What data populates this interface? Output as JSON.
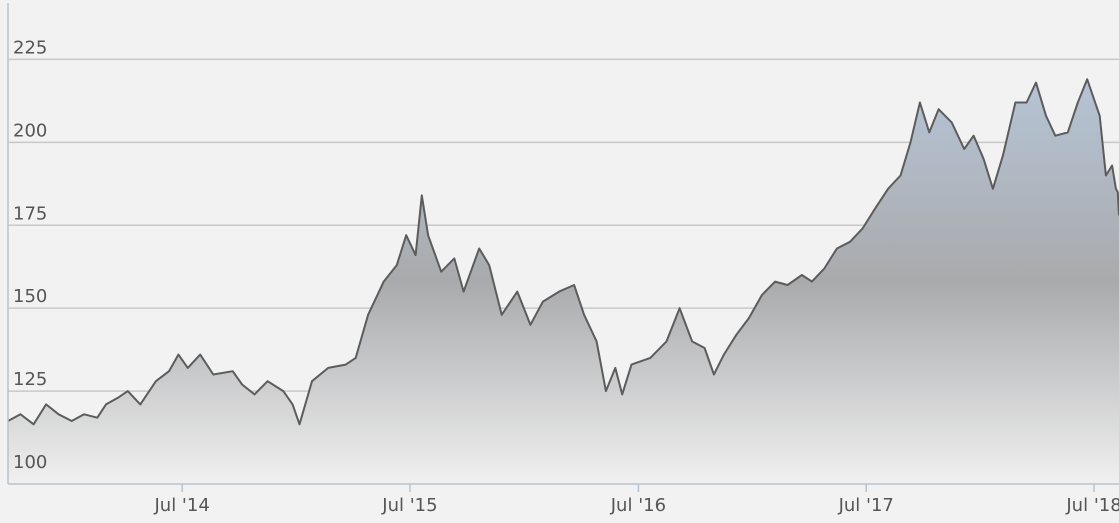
{
  "chart_data": {
    "type": "area",
    "title": "",
    "xlabel": "",
    "ylabel": "",
    "ylim": [
      97,
      242
    ],
    "xlim": [
      "2013-09-25",
      "2018-08-10"
    ],
    "grid": true,
    "y_ticks": [
      {
        "value": 100,
        "label": "100"
      },
      {
        "value": 125,
        "label": "125"
      },
      {
        "value": 150,
        "label": "150"
      },
      {
        "value": 175,
        "label": "175"
      },
      {
        "value": 200,
        "label": "200"
      },
      {
        "value": 225,
        "label": "225"
      }
    ],
    "x_ticks": [
      {
        "value": "2014-07-01",
        "label": "Jul '14"
      },
      {
        "value": "2015-07-01",
        "label": "Jul '15"
      },
      {
        "value": "2016-07-01",
        "label": "Jul '16"
      },
      {
        "value": "2017-07-01",
        "label": "Jul '17"
      },
      {
        "value": "2018-07-01",
        "label": "Jul '18"
      }
    ],
    "series": [
      {
        "values": [
          [
            "2013-09-25",
            116
          ],
          [
            "2013-10-15",
            118
          ],
          [
            "2013-11-05",
            115
          ],
          [
            "2013-11-25",
            121
          ],
          [
            "2013-12-15",
            118
          ],
          [
            "2014-01-05",
            116
          ],
          [
            "2014-01-25",
            118
          ],
          [
            "2014-02-15",
            117
          ],
          [
            "2014-03-01",
            121
          ],
          [
            "2014-03-20",
            123
          ],
          [
            "2014-04-05",
            125
          ],
          [
            "2014-04-25",
            121
          ],
          [
            "2014-05-20",
            128
          ],
          [
            "2014-06-10",
            131
          ],
          [
            "2014-06-25",
            136
          ],
          [
            "2014-07-10",
            132
          ],
          [
            "2014-07-30",
            136
          ],
          [
            "2014-08-20",
            130
          ],
          [
            "2014-09-20",
            131
          ],
          [
            "2014-10-05",
            127
          ],
          [
            "2014-10-25",
            124
          ],
          [
            "2014-11-15",
            128
          ],
          [
            "2014-12-10",
            125
          ],
          [
            "2014-12-25",
            121
          ],
          [
            "2015-01-05",
            115
          ],
          [
            "2015-01-25",
            128
          ],
          [
            "2015-02-20",
            132
          ],
          [
            "2015-03-20",
            133
          ],
          [
            "2015-04-05",
            135
          ],
          [
            "2015-04-25",
            148
          ],
          [
            "2015-05-20",
            158
          ],
          [
            "2015-06-10",
            163
          ],
          [
            "2015-06-25",
            172
          ],
          [
            "2015-07-10",
            166
          ],
          [
            "2015-07-20",
            184
          ],
          [
            "2015-07-30",
            172
          ],
          [
            "2015-08-20",
            161
          ],
          [
            "2015-09-10",
            165
          ],
          [
            "2015-09-25",
            155
          ],
          [
            "2015-10-20",
            168
          ],
          [
            "2015-11-05",
            163
          ],
          [
            "2015-11-25",
            148
          ],
          [
            "2015-12-20",
            155
          ],
          [
            "2016-01-10",
            145
          ],
          [
            "2016-01-30",
            152
          ],
          [
            "2016-02-25",
            155
          ],
          [
            "2016-03-20",
            157
          ],
          [
            "2016-04-05",
            148
          ],
          [
            "2016-04-25",
            140
          ],
          [
            "2016-05-10",
            125
          ],
          [
            "2016-05-25",
            132
          ],
          [
            "2016-06-05",
            124
          ],
          [
            "2016-06-20",
            133
          ],
          [
            "2016-07-20",
            135
          ],
          [
            "2016-08-15",
            140
          ],
          [
            "2016-09-05",
            150
          ],
          [
            "2016-09-25",
            140
          ],
          [
            "2016-10-15",
            138
          ],
          [
            "2016-10-30",
            130
          ],
          [
            "2016-11-15",
            136
          ],
          [
            "2016-12-05",
            142
          ],
          [
            "2016-12-25",
            147
          ],
          [
            "2017-01-15",
            154
          ],
          [
            "2017-02-05",
            158
          ],
          [
            "2017-02-25",
            157
          ],
          [
            "2017-03-20",
            160
          ],
          [
            "2017-04-05",
            158
          ],
          [
            "2017-04-25",
            162
          ],
          [
            "2017-05-15",
            168
          ],
          [
            "2017-06-05",
            170
          ],
          [
            "2017-06-25",
            174
          ],
          [
            "2017-07-15",
            180
          ],
          [
            "2017-08-05",
            186
          ],
          [
            "2017-08-25",
            190
          ],
          [
            "2017-09-10",
            200
          ],
          [
            "2017-09-25",
            212
          ],
          [
            "2017-10-10",
            203
          ],
          [
            "2017-10-25",
            210
          ],
          [
            "2017-11-15",
            206
          ],
          [
            "2017-12-05",
            198
          ],
          [
            "2017-12-20",
            202
          ],
          [
            "2018-01-05",
            195
          ],
          [
            "2018-01-20",
            186
          ],
          [
            "2018-02-05",
            196
          ],
          [
            "2018-02-25",
            212
          ],
          [
            "2018-03-15",
            212
          ],
          [
            "2018-03-30",
            218
          ],
          [
            "2018-04-15",
            208
          ],
          [
            "2018-04-30",
            202
          ],
          [
            "2018-05-20",
            203
          ],
          [
            "2018-06-05",
            212
          ],
          [
            "2018-06-20",
            219
          ],
          [
            "2018-07-10",
            208
          ],
          [
            "2018-07-20",
            190
          ],
          [
            "2018-07-30",
            193
          ],
          [
            "2018-08-05",
            186
          ],
          [
            "2018-08-08",
            185
          ],
          [
            "2018-08-10",
            178
          ]
        ]
      }
    ]
  }
}
